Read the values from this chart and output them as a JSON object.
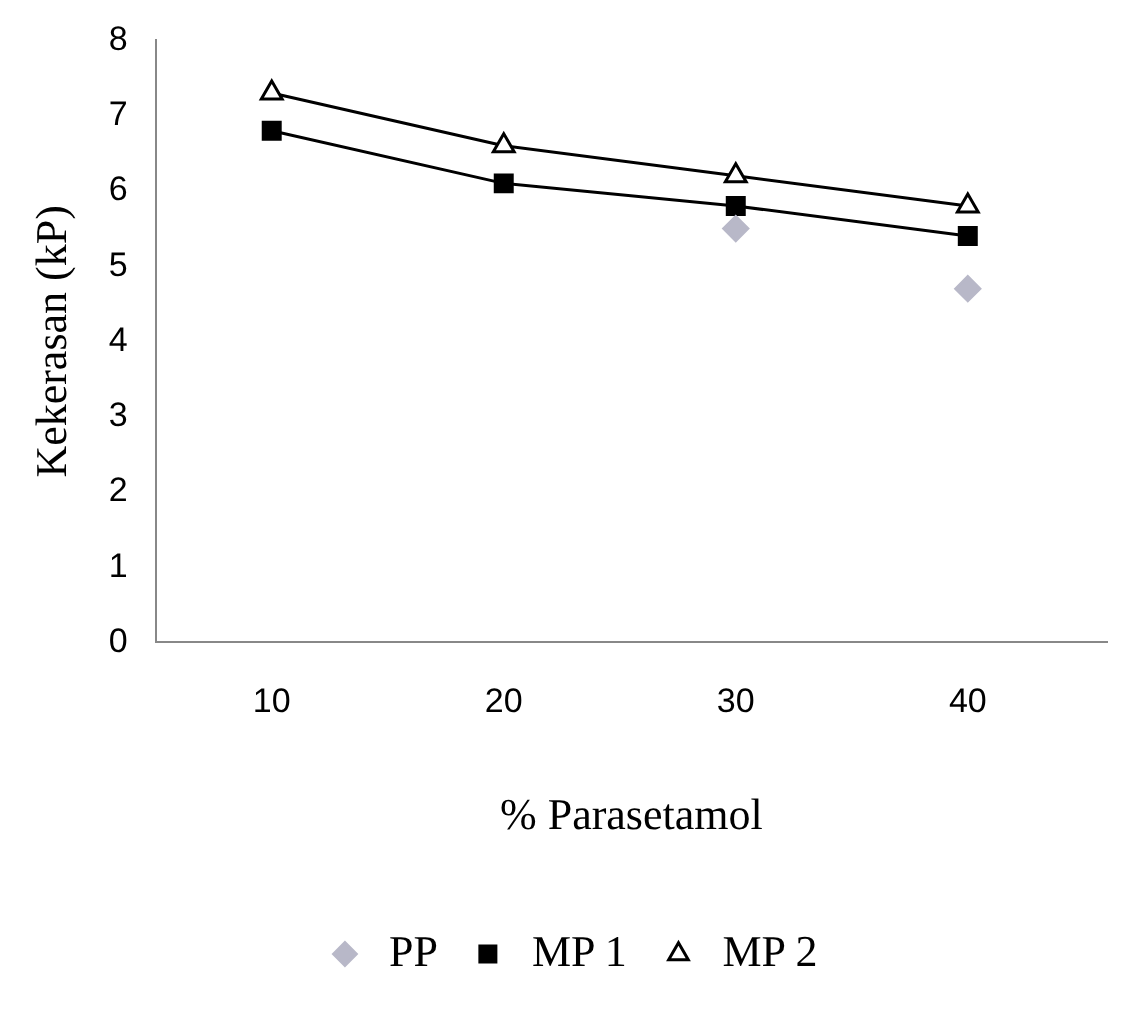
{
  "chart_data": {
    "type": "line",
    "xlabel": "% Parasetamol",
    "ylabel": "Kekerasan (kP)",
    "x": [
      10,
      20,
      30,
      40
    ],
    "xlim": [
      5,
      46
    ],
    "xticks": [
      10,
      20,
      30,
      40
    ],
    "ylim": [
      0,
      8
    ],
    "yticks": [
      0,
      1,
      2,
      3,
      4,
      5,
      6,
      7,
      8
    ],
    "grid": false,
    "legend": "bottom",
    "line_style": "solid",
    "series": [
      {
        "name": "PP",
        "type": "scatter",
        "color": "#b8b8c8",
        "marker": "diamond",
        "values": [
          null,
          null,
          5.5,
          4.7
        ]
      },
      {
        "name": "MP 1",
        "color": "#000000",
        "marker": "square",
        "values": [
          6.8,
          6.1,
          5.8,
          5.4
        ]
      },
      {
        "name": "MP 2",
        "color": "#000000",
        "marker": "triangle",
        "values": [
          7.3,
          6.6,
          6.2,
          5.8
        ]
      }
    ]
  }
}
